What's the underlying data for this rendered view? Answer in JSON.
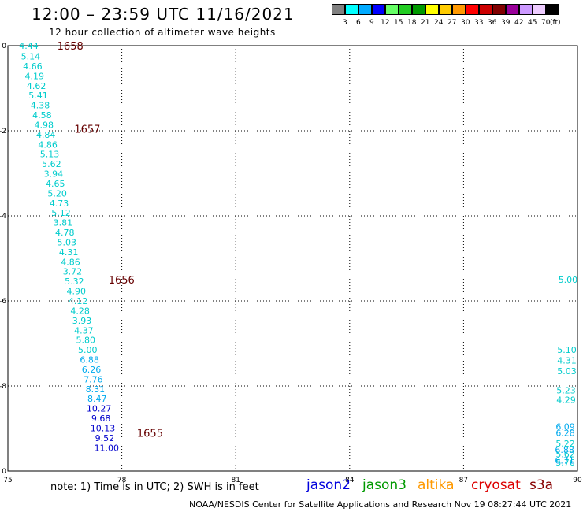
{
  "title": "12:00 – 23:59 UTC 11/16/2021",
  "subtitle": "12 hour collection of altimeter wave heights",
  "color_scale": {
    "unit": "(ft)",
    "colors": [
      "#808080",
      "#00ffff",
      "#00aaff",
      "#0000ff",
      "#66ff66",
      "#22cc22",
      "#009900",
      "#ffff00",
      "#ffcc00",
      "#ff9900",
      "#ff0000",
      "#cc0000",
      "#800000",
      "#990099",
      "#cc99ff",
      "#eeccff",
      "#000000"
    ],
    "labels": [
      "3",
      "6",
      "9",
      "12",
      "15",
      "18",
      "21",
      "24",
      "27",
      "30",
      "33",
      "36",
      "39",
      "42",
      "45",
      "70"
    ]
  },
  "note": "note:  1) Time is in UTC;  2) SWH is in feet",
  "legend": [
    {
      "name": "jason2",
      "color": "#0000dd"
    },
    {
      "name": "jason3",
      "color": "#009900"
    },
    {
      "name": "altika",
      "color": "#ff9900"
    },
    {
      "name": "cryosat",
      "color": "#dd0000"
    },
    {
      "name": "s3a",
      "color": "#880000"
    }
  ],
  "footer": "NOAA/NESDIS Center for Satellite Applications and Research    Nov 19 08:27:44 UTC 2021",
  "chart_data": {
    "type": "scatter",
    "xlim": [
      75,
      90
    ],
    "ylim": [
      -10,
      0
    ],
    "xticks": [
      "75",
      "78",
      "81",
      "84",
      "87",
      "90"
    ],
    "yticks": [
      "0",
      "-2",
      "-4",
      "-6",
      "-8",
      "-10"
    ],
    "grid": true,
    "track_labels": [
      {
        "text": "1658",
        "x": 76.3,
        "y": 0,
        "color": "#660000"
      },
      {
        "text": "1657",
        "x": 76.75,
        "y": -1.95,
        "color": "#660000"
      },
      {
        "text": "1656",
        "x": 77.65,
        "y": -5.5,
        "color": "#660000"
      },
      {
        "text": "1655",
        "x": 78.4,
        "y": -9.1,
        "color": "#660000"
      }
    ],
    "points": [
      {
        "x": 75.55,
        "y": 0,
        "v": "4.44",
        "c": "#00cccc"
      },
      {
        "x": 75.6,
        "y": -0.25,
        "v": "5.14",
        "c": "#00cccc"
      },
      {
        "x": 75.65,
        "y": -0.48,
        "v": "4.66",
        "c": "#00cccc"
      },
      {
        "x": 75.7,
        "y": -0.71,
        "v": "4.19",
        "c": "#00cccc"
      },
      {
        "x": 75.75,
        "y": -0.94,
        "v": "4.62",
        "c": "#00cccc"
      },
      {
        "x": 75.8,
        "y": -1.17,
        "v": "5.41",
        "c": "#00cccc"
      },
      {
        "x": 75.85,
        "y": -1.4,
        "v": "4.38",
        "c": "#00cccc"
      },
      {
        "x": 75.9,
        "y": -1.63,
        "v": "4.58",
        "c": "#00cccc"
      },
      {
        "x": 75.95,
        "y": -1.86,
        "v": "4.98",
        "c": "#00cccc"
      },
      {
        "x": 76.0,
        "y": -2.09,
        "v": "4.84",
        "c": "#00cccc"
      },
      {
        "x": 76.05,
        "y": -2.32,
        "v": "4.86",
        "c": "#00cccc"
      },
      {
        "x": 76.1,
        "y": -2.55,
        "v": "5.13",
        "c": "#00cccc"
      },
      {
        "x": 76.15,
        "y": -2.78,
        "v": "5.62",
        "c": "#00cccc"
      },
      {
        "x": 76.2,
        "y": -3.01,
        "v": "3.94",
        "c": "#00cccc"
      },
      {
        "x": 76.25,
        "y": -3.24,
        "v": "4.65",
        "c": "#00cccc"
      },
      {
        "x": 76.3,
        "y": -3.47,
        "v": "5.20",
        "c": "#00cccc"
      },
      {
        "x": 76.35,
        "y": -3.7,
        "v": "4.73",
        "c": "#00cccc"
      },
      {
        "x": 76.4,
        "y": -3.93,
        "v": "5.12",
        "c": "#00cccc"
      },
      {
        "x": 76.45,
        "y": -4.16,
        "v": "3.81",
        "c": "#00cccc"
      },
      {
        "x": 76.5,
        "y": -4.39,
        "v": "4.78",
        "c": "#00cccc"
      },
      {
        "x": 76.55,
        "y": -4.62,
        "v": "5.03",
        "c": "#00cccc"
      },
      {
        "x": 76.6,
        "y": -4.85,
        "v": "4.31",
        "c": "#00cccc"
      },
      {
        "x": 76.65,
        "y": -5.08,
        "v": "4.86",
        "c": "#00cccc"
      },
      {
        "x": 76.7,
        "y": -5.31,
        "v": "3.72",
        "c": "#00cccc"
      },
      {
        "x": 76.75,
        "y": -5.54,
        "v": "5.32",
        "c": "#00cccc"
      },
      {
        "x": 76.8,
        "y": -5.77,
        "v": "4.90",
        "c": "#00cccc"
      },
      {
        "x": 76.85,
        "y": -6.0,
        "v": "4.12",
        "c": "#00cccc"
      },
      {
        "x": 76.9,
        "y": -6.23,
        "v": "4.28",
        "c": "#00cccc"
      },
      {
        "x": 76.95,
        "y": -6.46,
        "v": "3.93",
        "c": "#00cccc"
      },
      {
        "x": 77.0,
        "y": -6.69,
        "v": "4.37",
        "c": "#00cccc"
      },
      {
        "x": 77.05,
        "y": -6.92,
        "v": "5.80",
        "c": "#00cccc"
      },
      {
        "x": 77.1,
        "y": -7.15,
        "v": "5.00",
        "c": "#00cccc"
      },
      {
        "x": 77.15,
        "y": -7.38,
        "v": "6.88",
        "c": "#00aaee"
      },
      {
        "x": 77.2,
        "y": -7.61,
        "v": "6.26",
        "c": "#00aaee"
      },
      {
        "x": 77.25,
        "y": -7.84,
        "v": "7.76",
        "c": "#00aaee"
      },
      {
        "x": 77.3,
        "y": -8.07,
        "v": "8.31",
        "c": "#00aaee"
      },
      {
        "x": 77.35,
        "y": -8.3,
        "v": "8.47",
        "c": "#00aaee"
      },
      {
        "x": 77.4,
        "y": -8.53,
        "v": "10.27",
        "c": "#0000cc"
      },
      {
        "x": 77.45,
        "y": -8.76,
        "v": "9.68",
        "c": "#0000cc"
      },
      {
        "x": 77.5,
        "y": -8.99,
        "v": "10.13",
        "c": "#0000cc"
      },
      {
        "x": 77.55,
        "y": -9.22,
        "v": "9.52",
        "c": "#0000cc"
      },
      {
        "x": 77.6,
        "y": -9.45,
        "v": "11.00",
        "c": "#0000cc"
      },
      {
        "x": 89.75,
        "y": -5.5,
        "v": "5.00",
        "c": "#00cccc"
      },
      {
        "x": 89.72,
        "y": -7.15,
        "v": "5.10",
        "c": "#00cccc"
      },
      {
        "x": 89.72,
        "y": -7.4,
        "v": "4.31",
        "c": "#00cccc"
      },
      {
        "x": 89.72,
        "y": -7.65,
        "v": "5.03",
        "c": "#00cccc"
      },
      {
        "x": 89.7,
        "y": -8.1,
        "v": "5.23",
        "c": "#00cccc"
      },
      {
        "x": 89.7,
        "y": -8.32,
        "v": "4.29",
        "c": "#00cccc"
      },
      {
        "x": 89.68,
        "y": -8.95,
        "v": "6.09",
        "c": "#00aaee"
      },
      {
        "x": 89.68,
        "y": -9.1,
        "v": "6.28",
        "c": "#00aaee"
      },
      {
        "x": 89.68,
        "y": -9.35,
        "v": "5.22",
        "c": "#00cccc"
      },
      {
        "x": 89.68,
        "y": -9.6,
        "v": "5.62",
        "c": "#00cccc"
      },
      {
        "x": 89.68,
        "y": -9.8,
        "v": "5.76",
        "c": "#00cccc"
      },
      {
        "x": 89.66,
        "y": -9.5,
        "v": "6.88",
        "c": "#00aaee"
      },
      {
        "x": 89.66,
        "y": -9.75,
        "v": "6.71",
        "c": "#00aaee"
      }
    ]
  }
}
